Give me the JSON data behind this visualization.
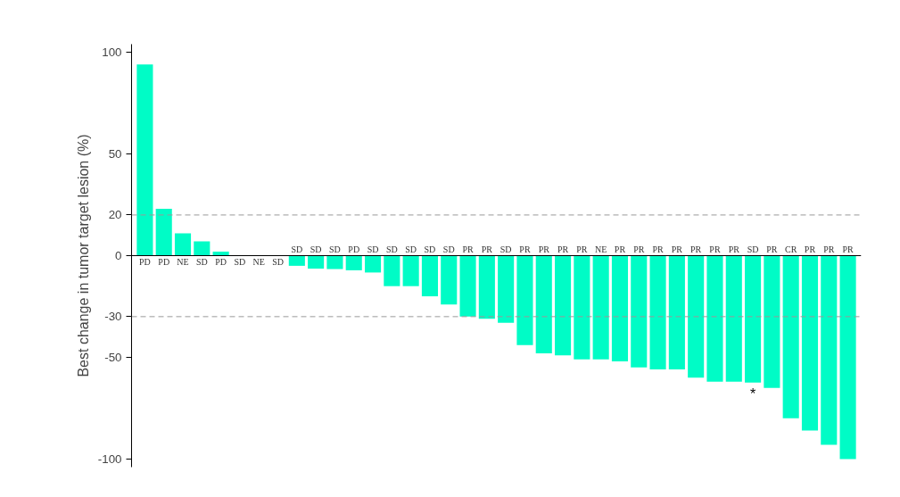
{
  "chart_data": {
    "type": "bar",
    "ylabel": "Best change in tumor target lesion (%)",
    "categories": [
      "PD",
      "PD",
      "NE",
      "SD",
      "PD",
      "SD",
      "NE",
      "SD",
      "SD",
      "SD",
      "SD",
      "PD",
      "SD",
      "SD",
      "SD",
      "SD",
      "SD",
      "PR",
      "PR",
      "SD",
      "PR",
      "PR",
      "PR",
      "PR",
      "NE",
      "PR",
      "PR",
      "PR",
      "PR",
      "PR",
      "PR",
      "PR",
      "SD",
      "PR",
      "CR",
      "PR",
      "PR",
      "PR"
    ],
    "values": [
      94,
      23,
      11,
      7,
      2,
      0,
      0,
      0,
      -5,
      -6.4,
      -6.6,
      -7.2,
      -8.3,
      -15,
      -15,
      -20,
      -24,
      -30,
      -31,
      -33,
      -44,
      -48,
      -49,
      -51,
      -51,
      -52,
      -55,
      -56,
      -56,
      -60,
      -62,
      -62,
      -62.4,
      -65,
      -80,
      -86,
      -93,
      -100
    ],
    "color": "#00fcc6",
    "ylim": [
      -104,
      104
    ],
    "yticks": [
      100,
      50,
      20,
      0,
      -30,
      -50,
      -100
    ],
    "grid": false,
    "value_labels": [
      null,
      null,
      null,
      null,
      null,
      null,
      null,
      null,
      null,
      null,
      null,
      null,
      null,
      null,
      null,
      null,
      null,
      null,
      null,
      null,
      null,
      null,
      null,
      null,
      null,
      null,
      null,
      null,
      null,
      null,
      null,
      null,
      "*",
      null,
      null,
      null,
      null,
      null
    ],
    "ref_lines": [
      {
        "axis": "y",
        "value": 20,
        "label": null,
        "color": "#999999",
        "line_style": "dashed"
      },
      {
        "axis": "y",
        "value": -30,
        "label": null,
        "color": "#999999",
        "line_style": "dashed"
      }
    ]
  }
}
